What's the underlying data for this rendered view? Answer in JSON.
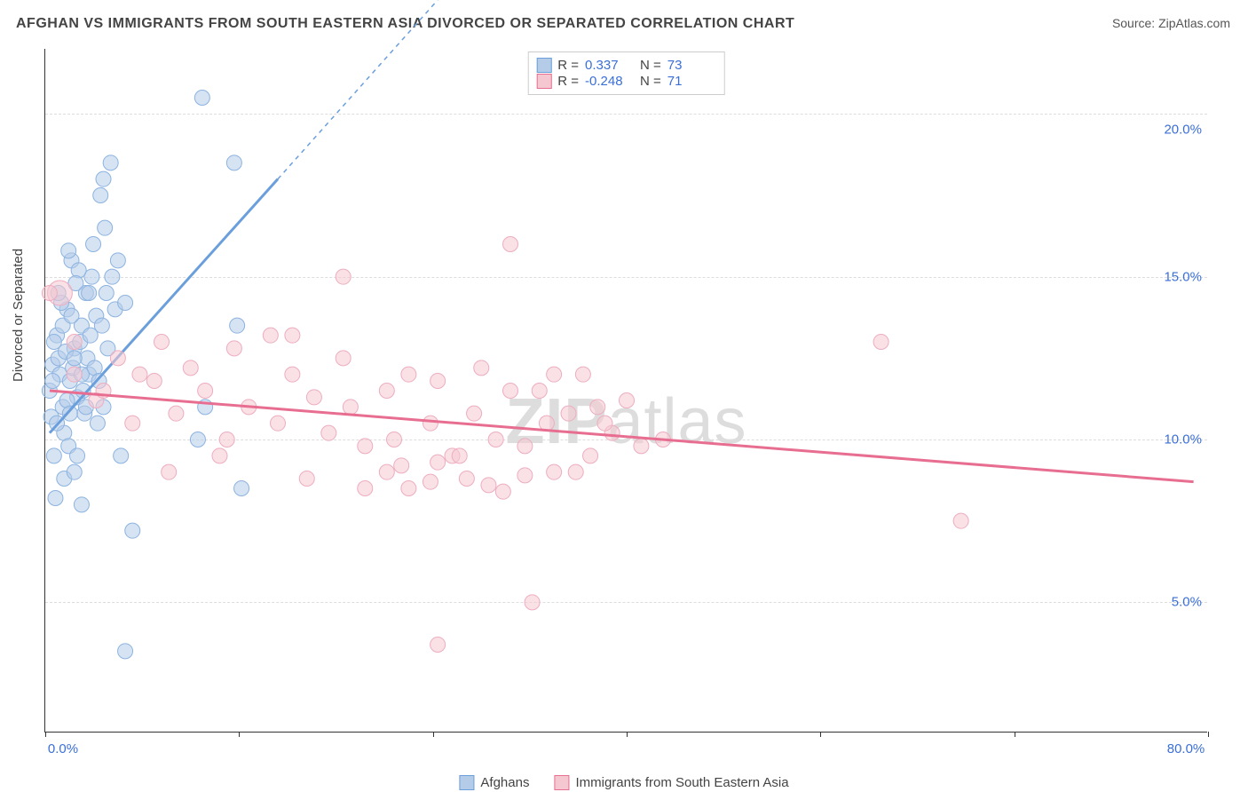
{
  "title": "AFGHAN VS IMMIGRANTS FROM SOUTH EASTERN ASIA DIVORCED OR SEPARATED CORRELATION CHART",
  "source": "Source: ZipAtlas.com",
  "ylabel": "Divorced or Separated",
  "watermark_bold": "ZIP",
  "watermark_light": "atlas",
  "chart": {
    "type": "scatter",
    "xlim": [
      0,
      80
    ],
    "ylim": [
      1,
      22
    ],
    "xticks": [
      0,
      13.33,
      26.67,
      40,
      53.33,
      66.67,
      80
    ],
    "xtick_labels": {
      "0": "0.0%",
      "80": "80.0%"
    },
    "ygrid": [
      5,
      10,
      15,
      20
    ],
    "ytick_labels": {
      "5": "5.0%",
      "10": "10.0%",
      "15": "15.0%",
      "20": "20.0%"
    },
    "background_color": "#ffffff",
    "grid_color": "#dddddd",
    "axis_color": "#333333",
    "label_color": "#3b6fd8",
    "marker_radius_default": 8.5,
    "marker_opacity": 0.55,
    "line_width": 3
  },
  "series": [
    {
      "name": "Afghans",
      "fill": "#b5cce9",
      "stroke": "#6b9fdc",
      "marker_stroke": "#8cb3e0",
      "R_label": "R =",
      "R": "0.337",
      "N_label": "N =",
      "N": "73",
      "regression": {
        "x1": 0.3,
        "y1": 10.2,
        "x2": 16,
        "y2": 18,
        "dash_x2": 27,
        "dash_y2": 23.5
      },
      "points": [
        [
          0.3,
          11.5
        ],
        [
          0.5,
          12.3
        ],
        [
          0.4,
          10.7
        ],
        [
          0.8,
          13.2
        ],
        [
          1.0,
          12.0
        ],
        [
          1.2,
          11.0
        ],
        [
          0.6,
          9.5
        ],
        [
          1.5,
          14.0
        ],
        [
          1.8,
          15.5
        ],
        [
          2.0,
          12.8
        ],
        [
          0.7,
          8.2
        ],
        [
          2.2,
          11.3
        ],
        [
          2.5,
          13.5
        ],
        [
          1.3,
          10.2
        ],
        [
          0.9,
          12.5
        ],
        [
          1.7,
          11.8
        ],
        [
          2.8,
          14.5
        ],
        [
          3.0,
          12.0
        ],
        [
          1.6,
          9.8
        ],
        [
          2.4,
          13.0
        ],
        [
          0.5,
          11.8
        ],
        [
          1.1,
          14.2
        ],
        [
          3.2,
          15.0
        ],
        [
          1.4,
          12.7
        ],
        [
          2.6,
          11.5
        ],
        [
          3.5,
          13.8
        ],
        [
          0.8,
          10.5
        ],
        [
          1.9,
          12.2
        ],
        [
          4.0,
          18.0
        ],
        [
          4.2,
          14.5
        ],
        [
          2.3,
          15.2
        ],
        [
          3.8,
          17.5
        ],
        [
          1.2,
          13.5
        ],
        [
          2.7,
          10.8
        ],
        [
          4.5,
          18.5
        ],
        [
          3.3,
          16.0
        ],
        [
          1.5,
          11.2
        ],
        [
          2.9,
          12.5
        ],
        [
          0.6,
          13.0
        ],
        [
          3.6,
          10.5
        ],
        [
          4.0,
          11.0
        ],
        [
          2.1,
          14.8
        ],
        [
          5.0,
          15.5
        ],
        [
          3.4,
          12.2
        ],
        [
          1.8,
          13.8
        ],
        [
          4.8,
          14.0
        ],
        [
          2.2,
          9.5
        ],
        [
          3.7,
          11.8
        ],
        [
          0.9,
          14.5
        ],
        [
          4.3,
          12.8
        ],
        [
          1.6,
          15.8
        ],
        [
          3.1,
          13.2
        ],
        [
          5.2,
          9.5
        ],
        [
          2.8,
          11.0
        ],
        [
          4.6,
          15.0
        ],
        [
          1.3,
          8.8
        ],
        [
          3.9,
          13.5
        ],
        [
          2.5,
          12.0
        ],
        [
          5.5,
          14.2
        ],
        [
          1.7,
          10.8
        ],
        [
          4.1,
          16.5
        ],
        [
          3.0,
          14.5
        ],
        [
          2.0,
          9.0
        ],
        [
          10.8,
          20.5
        ],
        [
          11.0,
          11.0
        ],
        [
          13.0,
          18.5
        ],
        [
          13.2,
          13.5
        ],
        [
          10.5,
          10.0
        ],
        [
          6.0,
          7.2
        ],
        [
          2.5,
          8.0
        ],
        [
          13.5,
          8.5
        ],
        [
          5.5,
          3.5
        ],
        [
          2.0,
          12.5
        ]
      ]
    },
    {
      "name": "Immigrants from South Eastern Asia",
      "fill": "#f5c8d1",
      "stroke": "#e86e91",
      "marker_stroke": "#edadc0",
      "R_label": "R =",
      "R": "-0.248",
      "N_label": "N =",
      "N": "71",
      "regression": {
        "x1": 0.3,
        "y1": 11.5,
        "x2": 79,
        "y2": 8.7
      },
      "points": [
        [
          2.0,
          12.0
        ],
        [
          3.5,
          11.2
        ],
        [
          5.0,
          12.5
        ],
        [
          6.0,
          10.5
        ],
        [
          7.5,
          11.8
        ],
        [
          8.0,
          13.0
        ],
        [
          9.0,
          10.8
        ],
        [
          10.0,
          12.2
        ],
        [
          11.0,
          11.5
        ],
        [
          12.5,
          10.0
        ],
        [
          13.0,
          12.8
        ],
        [
          14.0,
          11.0
        ],
        [
          15.5,
          13.2
        ],
        [
          16.0,
          10.5
        ],
        [
          17.0,
          12.0
        ],
        [
          18.5,
          11.3
        ],
        [
          19.5,
          10.2
        ],
        [
          20.5,
          12.5
        ],
        [
          21.0,
          11.0
        ],
        [
          22.0,
          9.8
        ],
        [
          23.5,
          11.5
        ],
        [
          24.0,
          10.0
        ],
        [
          25.0,
          12.0
        ],
        [
          26.5,
          10.5
        ],
        [
          27.0,
          11.8
        ],
        [
          28.0,
          9.5
        ],
        [
          29.5,
          10.8
        ],
        [
          30.0,
          12.2
        ],
        [
          31.0,
          10.0
        ],
        [
          17.0,
          13.2
        ],
        [
          20.5,
          15.0
        ],
        [
          32.0,
          11.5
        ],
        [
          33.0,
          9.8
        ],
        [
          34.5,
          10.5
        ],
        [
          35.0,
          12.0
        ],
        [
          36.0,
          10.8
        ],
        [
          37.5,
          9.5
        ],
        [
          38.0,
          11.0
        ],
        [
          39.0,
          10.2
        ],
        [
          32.0,
          16.0
        ],
        [
          34.0,
          11.5
        ],
        [
          23.5,
          9.0
        ],
        [
          25.0,
          8.5
        ],
        [
          27.0,
          9.3
        ],
        [
          29.0,
          8.8
        ],
        [
          22.0,
          8.5
        ],
        [
          35.0,
          9.0
        ],
        [
          26.5,
          8.7
        ],
        [
          28.5,
          9.5
        ],
        [
          31.5,
          8.4
        ],
        [
          33.0,
          8.9
        ],
        [
          24.5,
          9.2
        ],
        [
          36.5,
          9.0
        ],
        [
          30.5,
          8.6
        ],
        [
          37.0,
          12.0
        ],
        [
          38.5,
          10.5
        ],
        [
          40.0,
          11.2
        ],
        [
          41.0,
          9.8
        ],
        [
          42.5,
          10.0
        ],
        [
          27.0,
          3.7
        ],
        [
          33.5,
          5.0
        ],
        [
          57.5,
          13.0
        ],
        [
          63.0,
          7.5
        ],
        [
          1.0,
          14.5,
          14
        ],
        [
          2.0,
          13.0
        ],
        [
          0.3,
          14.5
        ],
        [
          4.0,
          11.5
        ],
        [
          6.5,
          12.0
        ],
        [
          8.5,
          9.0
        ],
        [
          12.0,
          9.5
        ],
        [
          18.0,
          8.8
        ]
      ]
    }
  ],
  "legend_bottom": [
    {
      "label": "Afghans"
    },
    {
      "label": "Immigrants from South Eastern Asia"
    }
  ]
}
